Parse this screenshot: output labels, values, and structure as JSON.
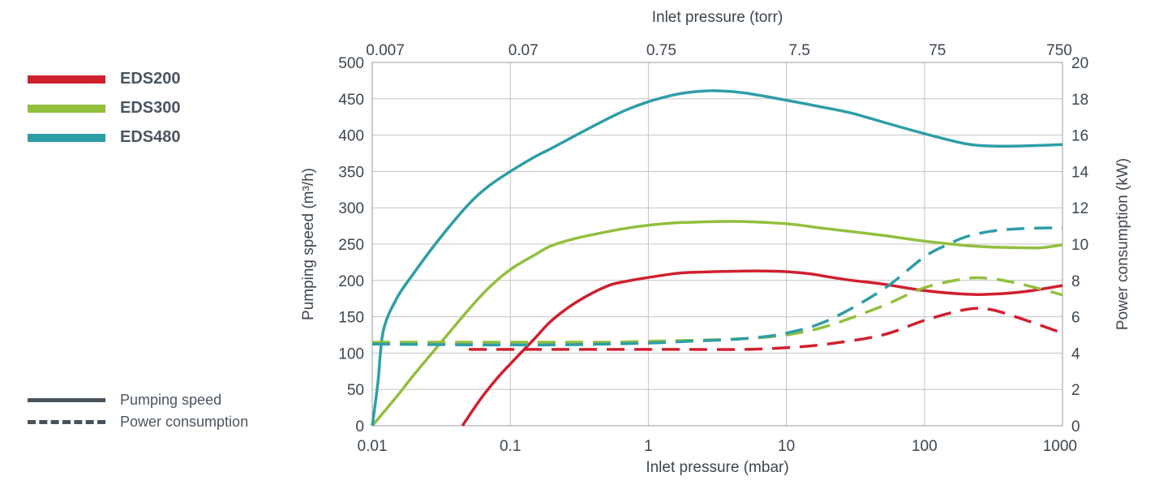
{
  "legend": {
    "series": [
      {
        "name": "EDS200",
        "color": "#d0202e"
      },
      {
        "name": "EDS300",
        "color": "#92bf3e"
      },
      {
        "name": "EDS480",
        "color": "#2e9ea6"
      }
    ],
    "line_styles": [
      {
        "style": "solid",
        "label": "Pumping speed"
      },
      {
        "style": "dashed",
        "label": "Power consumption"
      }
    ]
  },
  "chart_data": {
    "type": "line",
    "xlabel_bottom": "Inlet pressure (mbar)",
    "xlabel_top": "Inlet pressure (torr)",
    "ylabel_left": "Pumping speed (m³/h)",
    "ylabel_right": "Power consumption (kW)",
    "x_scale": "log",
    "xlim": [
      0.01,
      1000
    ],
    "x_ticks": [
      "0.01",
      "0.1",
      "1",
      "10",
      "100",
      "1000"
    ],
    "x_top_ticks": [
      "0.007",
      "0.07",
      "0.75",
      "7.5",
      "75",
      "750"
    ],
    "ylim_left": [
      0,
      500
    ],
    "y_left_ticks": [
      "0",
      "50",
      "100",
      "150",
      "200",
      "250",
      "300",
      "350",
      "400",
      "450",
      "500"
    ],
    "ylim_right": [
      0,
      20
    ],
    "y_right_ticks": [
      "0",
      "2",
      "4",
      "6",
      "8",
      "10",
      "12",
      "14",
      "16",
      "18",
      "20"
    ],
    "grid": true,
    "legend_position": "left",
    "series": [
      {
        "name": "EDS200",
        "metric": "Pumping speed",
        "axis": "left",
        "color": "#d0202e",
        "x": [
          0.045,
          0.06,
          0.08,
          0.1,
          0.15,
          0.2,
          0.3,
          0.5,
          0.7,
          1,
          1.5,
          2,
          3,
          5,
          7,
          10,
          15,
          20,
          30,
          50,
          100,
          200,
          300,
          500,
          700,
          1000
        ],
        "y": [
          0,
          35,
          65,
          85,
          120,
          145,
          170,
          192,
          199,
          204,
          209,
          211,
          212,
          213,
          213,
          212,
          209,
          205,
          200,
          195,
          186,
          181,
          181,
          184,
          188,
          193
        ]
      },
      {
        "name": "EDS300",
        "metric": "Pumping speed",
        "axis": "left",
        "color": "#92bf3e",
        "x": [
          0.01,
          0.015,
          0.02,
          0.03,
          0.05,
          0.07,
          0.1,
          0.15,
          0.2,
          0.3,
          0.5,
          0.7,
          1,
          1.5,
          2,
          3,
          5,
          10,
          20,
          50,
          100,
          200,
          300,
          500,
          700,
          1000
        ],
        "y": [
          0,
          40,
          70,
          110,
          160,
          190,
          215,
          235,
          248,
          258,
          267,
          272,
          276,
          279,
          280,
          281,
          281,
          278,
          271,
          262,
          254,
          248,
          246,
          245,
          245,
          249
        ]
      },
      {
        "name": "EDS480",
        "metric": "Pumping speed",
        "axis": "left",
        "color": "#2e9ea6",
        "x": [
          0.01,
          0.011,
          0.012,
          0.015,
          0.02,
          0.03,
          0.05,
          0.07,
          0.1,
          0.15,
          0.2,
          0.3,
          0.5,
          0.7,
          1,
          1.5,
          2,
          3,
          5,
          10,
          20,
          30,
          50,
          100,
          200,
          300,
          500,
          1000
        ],
        "y": [
          0,
          60,
          130,
          175,
          210,
          255,
          305,
          330,
          350,
          370,
          382,
          400,
          422,
          435,
          446,
          455,
          459,
          461,
          458,
          448,
          437,
          430,
          418,
          402,
          388,
          385,
          385,
          387
        ]
      },
      {
        "name": "EDS200",
        "metric": "Power consumption",
        "axis": "right",
        "color": "#d0202e",
        "x": [
          0.05,
          0.1,
          0.2,
          0.5,
          1,
          2,
          5,
          10,
          20,
          50,
          100,
          200,
          300,
          500,
          1000
        ],
        "y": [
          4.2,
          4.2,
          4.2,
          4.2,
          4.2,
          4.2,
          4.2,
          4.3,
          4.5,
          5.0,
          5.8,
          6.4,
          6.4,
          5.9,
          5.1
        ]
      },
      {
        "name": "EDS300",
        "metric": "Power consumption",
        "axis": "right",
        "color": "#92bf3e",
        "x": [
          0.01,
          0.05,
          0.1,
          0.2,
          0.5,
          1,
          2,
          5,
          10,
          20,
          50,
          100,
          200,
          300,
          500,
          1000
        ],
        "y": [
          4.6,
          4.6,
          4.6,
          4.6,
          4.6,
          4.65,
          4.7,
          4.8,
          5.0,
          5.5,
          6.6,
          7.6,
          8.1,
          8.1,
          7.8,
          7.2
        ]
      },
      {
        "name": "EDS480",
        "metric": "Power consumption",
        "axis": "right",
        "color": "#2e9ea6",
        "x": [
          0.01,
          0.05,
          0.1,
          0.2,
          0.5,
          1,
          2,
          5,
          10,
          20,
          50,
          100,
          150,
          200,
          300,
          500,
          1000
        ],
        "y": [
          4.5,
          4.45,
          4.45,
          4.45,
          4.5,
          4.55,
          4.65,
          4.8,
          5.1,
          5.8,
          7.5,
          9.3,
          10.0,
          10.4,
          10.7,
          10.85,
          10.9
        ]
      }
    ]
  }
}
